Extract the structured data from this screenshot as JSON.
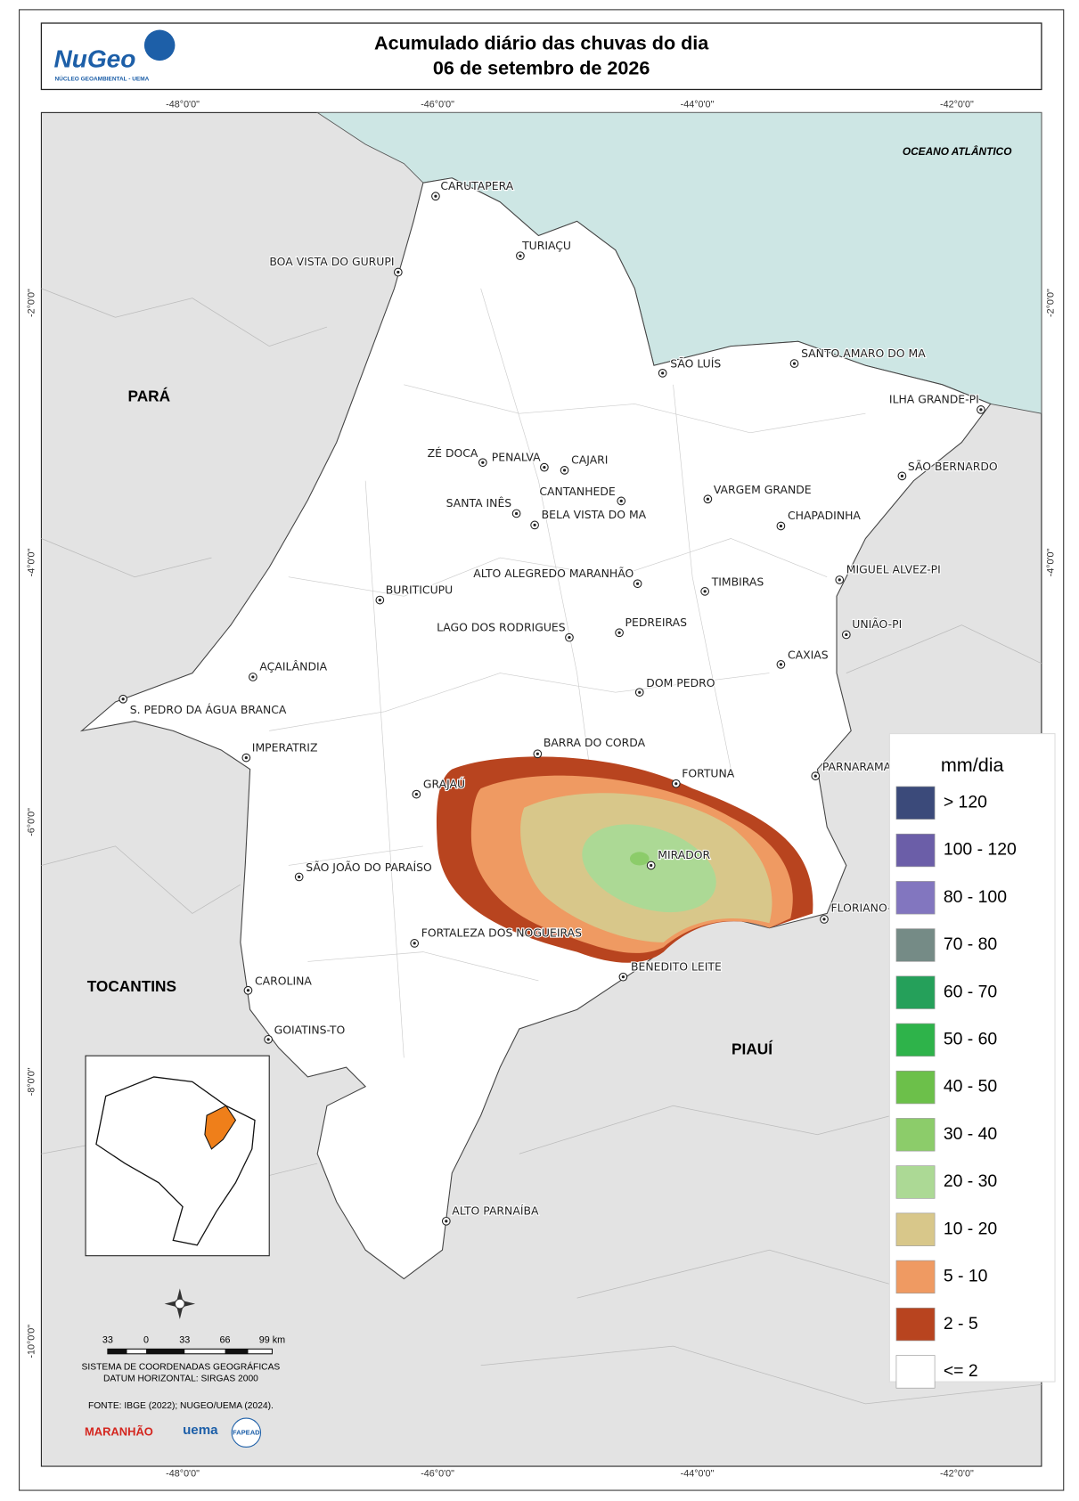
{
  "header": {
    "logo": "NuGeo",
    "logo_sub": "NÚCLEO GEOAMBIENTAL - UEMA",
    "title_line1": "Acumulado diário das chuvas do dia",
    "title_line2": "06 de setembro de 2026"
  },
  "coordinates": {
    "longitudes": [
      "-48°0'0\"",
      "-46°0'0\"",
      "-44°0'0\"",
      "-42°0'0\""
    ],
    "latitudes": [
      "-2°0'0\"",
      "-4°0'0\"",
      "-6°0'0\"",
      "-8°0'0\"",
      "-10°0'0\""
    ]
  },
  "map": {
    "ocean_label": "OCEANO ATLÂNTICO",
    "regions": [
      "PARÁ",
      "TOCANTINS",
      "PIAUÍ"
    ],
    "cities": [
      "CARUTAPERA",
      "TURIAÇU",
      "BOA VISTA DO GURUPI",
      "SÃO LUÍS",
      "SANTO AMARO DO MA",
      "ILHA GRANDE-PI",
      "ZÉ DOCA",
      "PENALVA",
      "CAJARI",
      "SÃO BERNARDO",
      "SANTA INÊS",
      "CANTANHEDE",
      "BELA VISTA DO MA",
      "VARGEM GRANDE",
      "CHAPADINHA",
      "ALTO ALEGREDO MARANHÃO",
      "TIMBIRAS",
      "MIGUEL ALVEZ-PI",
      "BURITICUPU",
      "LAGO DOS RODRIGUES",
      "PEDREIRAS",
      "UNIÃO-PI",
      "CAXIAS",
      "AÇAILÂNDIA",
      "DOM PEDRO",
      "S. PEDRO DA ÁGUA BRANCA",
      "BARRA DO CORDA",
      "IMPERATRIZ",
      "FORTUNA",
      "PARNARAMA",
      "GRAJAÚ",
      "MIRADOR",
      "SÃO JOÃO DO PARAÍSO",
      "FLORIANO-PI",
      "FORTALEZA DOS NOGUEIRAS",
      "BENEDITO LEITE",
      "CAROLINA",
      "GOIATINS-TO",
      "ALTO PARNAÍBA"
    ]
  },
  "legend": {
    "title": "mm/dia",
    "classes": [
      {
        "label": "> 120",
        "color": "#3b4a7a"
      },
      {
        "label": "100 - 120",
        "color": "#6b5ea8"
      },
      {
        "label": "80 - 100",
        "color": "#8276bf"
      },
      {
        "label": "70 - 80",
        "color": "#758b86"
      },
      {
        "label": "60 - 70",
        "color": "#25a05a"
      },
      {
        "label": "50 - 60",
        "color": "#2eb34a"
      },
      {
        "label": "40 - 50",
        "color": "#6cc04a"
      },
      {
        "label": "30 - 40",
        "color": "#8ccc6a"
      },
      {
        "label": "20 - 30",
        "color": "#acd995"
      },
      {
        "label": "10 - 20",
        "color": "#d8c78a"
      },
      {
        "label": "5 - 10",
        "color": "#ef9a62"
      },
      {
        "label": "2 - 5",
        "color": "#b8441f"
      },
      {
        "label": "<= 2",
        "color": "#ffffff"
      }
    ]
  },
  "scale_bar": {
    "labels": [
      "33",
      "0",
      "33",
      "66",
      "99 km"
    ]
  },
  "footer": {
    "crs": "SISTEMA DE COORDENADAS GEOGRÁFICAS",
    "datum": "DATUM HORIZONTAL: SIRGAS 2000",
    "source": "FONTE: IBGE (2022); NUGEO/UEMA (2024).",
    "logos": [
      "MARANHÃO",
      "uema",
      "FAPEAD"
    ]
  }
}
